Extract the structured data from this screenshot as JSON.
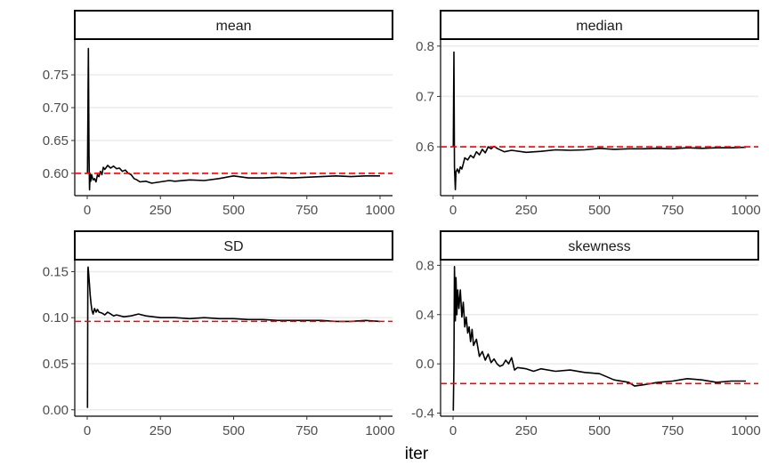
{
  "chart_data": {
    "type": "line",
    "facets": "2x2 grid, free y scales",
    "xlabel": "iter",
    "ylabel": "",
    "xlim": [
      0,
      1000
    ],
    "x_ticks": [
      "0",
      "250",
      "500",
      "750",
      "1000"
    ],
    "grid": "horizontal major gridlines only",
    "colors": {
      "line": "#000000",
      "reference": "#ff0000",
      "strip_fill": "#ffffff",
      "strip_border": "#000000",
      "grid": "#ebebeb"
    },
    "panels": [
      {
        "title": "mean",
        "reference": 0.6,
        "ylim": [
          0.566,
          0.803
        ],
        "y_ticks": [
          0.6,
          0.65,
          0.7,
          0.75
        ],
        "y_tick_labels": [
          "0.60",
          "0.65",
          "0.70",
          "0.75"
        ],
        "x": [
          1,
          4,
          6,
          8,
          10,
          12,
          15,
          20,
          25,
          30,
          35,
          40,
          45,
          50,
          55,
          60,
          70,
          80,
          90,
          100,
          110,
          120,
          130,
          140,
          150,
          160,
          170,
          180,
          200,
          220,
          250,
          280,
          300,
          350,
          400,
          450,
          500,
          550,
          600,
          650,
          700,
          750,
          800,
          850,
          900,
          950,
          1000
        ],
        "y": [
          0.6,
          0.79,
          0.63,
          0.575,
          0.6,
          0.588,
          0.598,
          0.59,
          0.592,
          0.587,
          0.598,
          0.595,
          0.603,
          0.598,
          0.609,
          0.606,
          0.612,
          0.608,
          0.611,
          0.607,
          0.608,
          0.603,
          0.605,
          0.6,
          0.598,
          0.592,
          0.59,
          0.587,
          0.588,
          0.585,
          0.587,
          0.589,
          0.588,
          0.59,
          0.589,
          0.592,
          0.596,
          0.593,
          0.593,
          0.594,
          0.593,
          0.594,
          0.595,
          0.596,
          0.595,
          0.596,
          0.596
        ]
      },
      {
        "title": "median",
        "reference": 0.6,
        "ylim": [
          0.503,
          0.812
        ],
        "y_ticks": [
          0.6,
          0.7,
          0.8
        ],
        "y_tick_labels": [
          "0.6",
          "0.7",
          "0.8"
        ],
        "x": [
          1,
          3,
          5,
          8,
          10,
          15,
          20,
          25,
          30,
          35,
          40,
          50,
          60,
          70,
          80,
          90,
          100,
          110,
          120,
          130,
          140,
          150,
          175,
          200,
          250,
          300,
          350,
          400,
          450,
          500,
          550,
          600,
          650,
          700,
          750,
          800,
          850,
          900,
          950,
          1000
        ],
        "y": [
          0.6,
          0.788,
          0.56,
          0.515,
          0.55,
          0.556,
          0.548,
          0.56,
          0.556,
          0.566,
          0.578,
          0.574,
          0.583,
          0.578,
          0.59,
          0.584,
          0.595,
          0.588,
          0.6,
          0.596,
          0.601,
          0.597,
          0.59,
          0.593,
          0.589,
          0.591,
          0.594,
          0.593,
          0.594,
          0.597,
          0.595,
          0.596,
          0.596,
          0.597,
          0.596,
          0.598,
          0.597,
          0.598,
          0.598,
          0.599
        ]
      },
      {
        "title": "SD",
        "reference": 0.096,
        "ylim": [
          -0.007,
          0.163
        ],
        "y_ticks": [
          0.0,
          0.05,
          0.1,
          0.15
        ],
        "y_tick_labels": [
          "0.00",
          "0.05",
          "0.10",
          "0.15"
        ],
        "x": [
          1,
          2,
          3,
          5,
          8,
          10,
          13,
          16,
          20,
          25,
          30,
          35,
          40,
          50,
          60,
          70,
          80,
          90,
          100,
          125,
          150,
          175,
          200,
          250,
          300,
          350,
          400,
          450,
          500,
          550,
          600,
          650,
          700,
          750,
          800,
          850,
          900,
          950,
          1000
        ],
        "y": [
          0.002,
          0.15,
          0.155,
          0.148,
          0.135,
          0.125,
          0.115,
          0.108,
          0.104,
          0.11,
          0.106,
          0.109,
          0.106,
          0.105,
          0.103,
          0.106,
          0.104,
          0.102,
          0.103,
          0.101,
          0.102,
          0.104,
          0.102,
          0.1,
          0.1,
          0.099,
          0.1,
          0.099,
          0.099,
          0.098,
          0.098,
          0.097,
          0.097,
          0.097,
          0.097,
          0.096,
          0.096,
          0.097,
          0.096
        ]
      },
      {
        "title": "skewness",
        "reference": -0.16,
        "ylim": [
          -0.425,
          0.846
        ],
        "y_ticks": [
          -0.4,
          0.0,
          0.4,
          0.8
        ],
        "y_tick_labels": [
          "-0.4",
          "0.0",
          "0.4",
          "0.8"
        ],
        "x": [
          1,
          3,
          5,
          8,
          10,
          13,
          16,
          20,
          25,
          30,
          35,
          40,
          45,
          50,
          55,
          60,
          65,
          70,
          80,
          90,
          100,
          110,
          120,
          130,
          140,
          150,
          160,
          170,
          180,
          190,
          200,
          210,
          220,
          250,
          275,
          300,
          350,
          400,
          450,
          500,
          550,
          600,
          620,
          650,
          700,
          750,
          800,
          850,
          900,
          950,
          1000
        ],
        "y": [
          -0.38,
          0.0,
          0.79,
          0.35,
          0.7,
          0.4,
          0.6,
          0.45,
          0.6,
          0.38,
          0.5,
          0.3,
          0.38,
          0.25,
          0.3,
          0.18,
          0.28,
          0.15,
          0.2,
          0.06,
          0.1,
          0.03,
          0.08,
          0.01,
          0.04,
          0.0,
          -0.02,
          -0.01,
          0.03,
          0.0,
          0.05,
          -0.05,
          -0.03,
          -0.04,
          -0.06,
          -0.04,
          -0.06,
          -0.05,
          -0.07,
          -0.08,
          -0.13,
          -0.15,
          -0.18,
          -0.17,
          -0.15,
          -0.14,
          -0.12,
          -0.13,
          -0.15,
          -0.14,
          -0.14
        ]
      }
    ]
  }
}
